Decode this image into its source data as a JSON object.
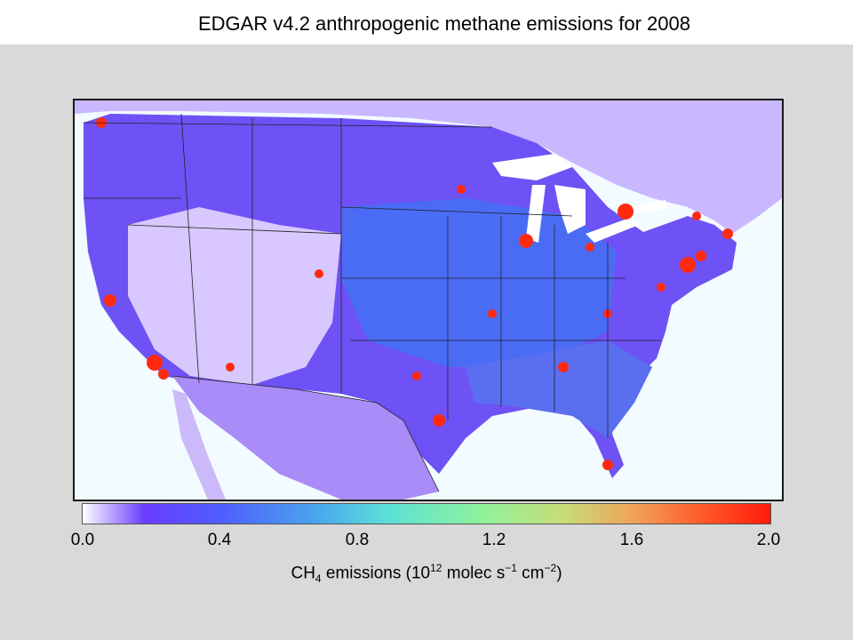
{
  "title": "EDGAR v4.2 anthropogenic methane emissions for 2008",
  "map": {
    "region": "Contiguous United States with southern Canada and northern Mexico",
    "projection_note": "",
    "colors": {
      "ocean": "#f2fbff",
      "low": "#ffffff",
      "lowmid": "#6a3cff",
      "mid": "#4e5dff",
      "high": "#ff1a0a",
      "lakes": "#ffffff"
    }
  },
  "colorbar": {
    "min": 0.0,
    "max": 2.0,
    "ticks": [
      "0.0",
      "0.4",
      "0.8",
      "1.2",
      "1.6",
      "2.0"
    ],
    "label_main": "CH",
    "label_sub": "4",
    "label_mid": " emissions (10",
    "label_sup": "12",
    "label_mid2": " molec s",
    "label_sup2": "−1",
    "label_mid3": " cm",
    "label_sup3": "−2",
    "label_end": ")"
  }
}
